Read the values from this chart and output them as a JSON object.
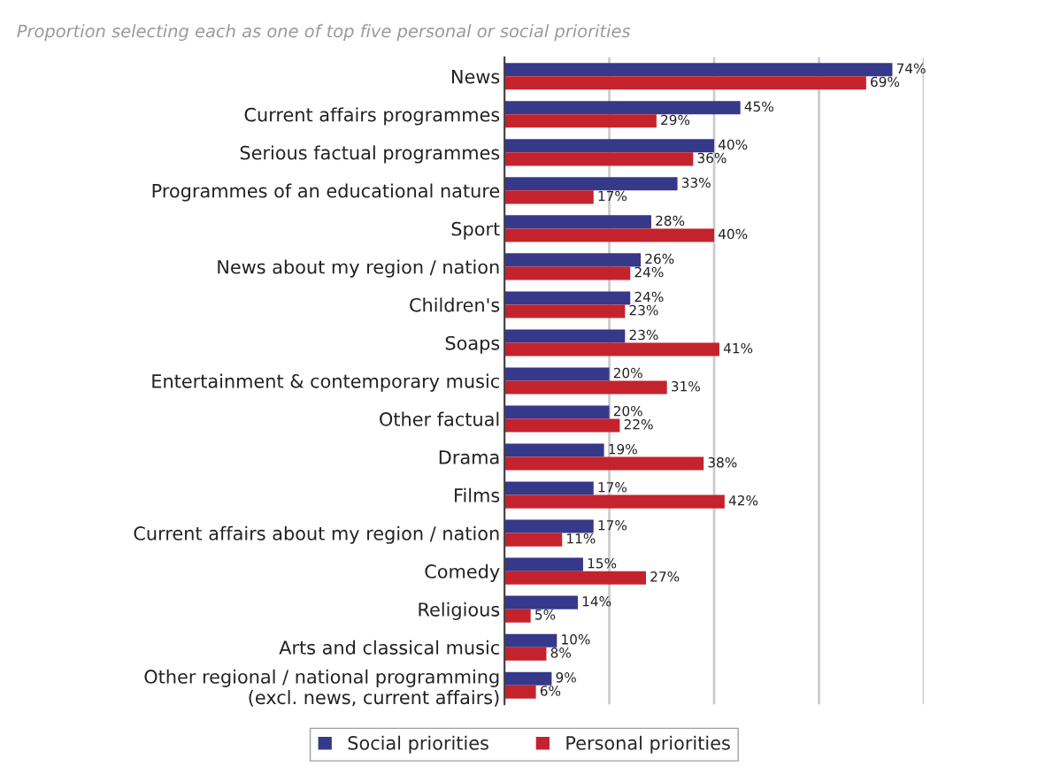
{
  "chart_data": {
    "type": "bar",
    "orientation": "horizontal",
    "title": "Proportion selecting each as one of top five personal or social priorities",
    "categories": [
      "News",
      "Current affairs programmes",
      "Serious factual programmes",
      "Programmes of an educational nature",
      "Sport",
      "News about my region / nation",
      "Children's",
      "Soaps",
      "Entertainment & contemporary music",
      "Other factual",
      "Drama",
      "Films",
      "Current affairs about my region / nation",
      "Comedy",
      "Religious",
      "Arts and classical music",
      "Other regional / national programming\n(excl. news, current affairs)"
    ],
    "series": [
      {
        "name": "Social priorities",
        "color": "#36388a",
        "values": [
          74,
          45,
          40,
          33,
          28,
          26,
          24,
          23,
          20,
          20,
          19,
          17,
          17,
          15,
          14,
          10,
          9
        ],
        "value_labels": [
          "74%",
          "45%",
          "40%",
          "33%",
          "28%",
          "26%",
          "24%",
          "23%",
          "20%",
          "20%",
          "19%",
          "17%",
          "17%",
          "15%",
          "14%",
          "10%",
          "9%"
        ]
      },
      {
        "name": "Personal priorities",
        "color": "#c4232e",
        "values": [
          69,
          29,
          36,
          17,
          40,
          24,
          23,
          41,
          31,
          22,
          38,
          42,
          11,
          27,
          5,
          8,
          6
        ],
        "value_labels": [
          "69%",
          "29%",
          "36%",
          "17%",
          "40%",
          "24%",
          "23%",
          "41%",
          "31%",
          "22%",
          "38%",
          "42%",
          "11%",
          "27%",
          "5%",
          "8%",
          "6%"
        ]
      }
    ],
    "xlim": [
      0,
      80
    ],
    "xticks": [
      {
        "value": 0,
        "label": null
      },
      {
        "value": 20,
        "label": null
      },
      {
        "value": 40,
        "label": null
      },
      {
        "value": 60,
        "label": null
      },
      {
        "value": 80,
        "label": null
      }
    ],
    "tick_labels": "y",
    "grid": "x",
    "legend": "bottom"
  }
}
